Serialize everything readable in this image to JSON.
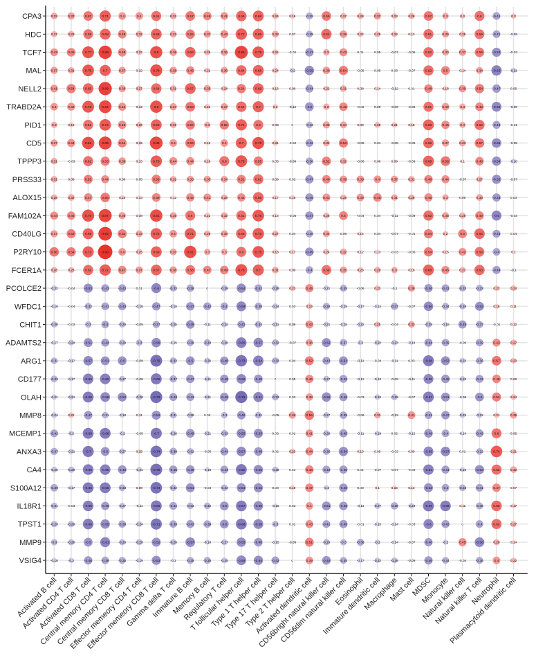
{
  "chart_data": {
    "type": "heatmap",
    "rows": [
      "CPA3",
      "HDC",
      "TCF7",
      "MAL",
      "NELL2",
      "TRABD2A",
      "PID1",
      "CD5",
      "TPPP3",
      "PRSS33",
      "ALOX15",
      "FAM102A",
      "CD40LG",
      "P2RY10",
      "FCER1A",
      "PCOLCE2",
      "WFDC1",
      "CHIT1",
      "ADAMTS2",
      "ARG1",
      "CD177",
      "OLAH",
      "MMP8",
      "MCEMP1",
      "ANXA3",
      "CA4",
      "S100A12",
      "IL18R1",
      "TPST1",
      "MMP9",
      "VSIG4"
    ],
    "columns": [
      "Activated B cell",
      "Activated CD4 T cell",
      "Activated CD8 T cell",
      "Central memory CD4 T cell",
      "Central memory CD8 T cell",
      "Effector memeory CD4 T cell",
      "Effector memeory CD8 T cell",
      "Gamma delta T cell",
      "Immature  B cell",
      "Memory B cell",
      "Regulatory T cell",
      "T follicular helper cell",
      "Type 1 T helper cell",
      "Type 17 T helper cell",
      "Type 2 T helper cell",
      "Activated dendritic cell",
      "CD56bright natural killer cell",
      "CD56dim natural killer cell",
      "Eosinophil",
      "Immature dendritic cell",
      "Macrophage",
      "Mast cell",
      "MDSC",
      "Monocyte",
      "Natural killer cell",
      "Natural killer T cell",
      "Neutrophil",
      "Plasmacytoid dendritic cell"
    ],
    "values": [
      [
        0.32,
        0.37,
        0.57,
        0.71,
        0.4,
        0.4,
        0.61,
        0.31,
        0.57,
        0.48,
        0.41,
        0.65,
        0.68,
        0.26,
        0.19,
        -0.35,
        0.56,
        0.27,
        0.28,
        0.37,
        0.23,
        0.28,
        0.57,
        0.3,
        0.2,
        0.6,
        -0.41,
        0.2
      ],
      [
        0.27,
        0.29,
        0.59,
        0.68,
        0.49,
        0.32,
        0.68,
        0.33,
        0.55,
        0.37,
        0.43,
        0.72,
        0.69,
        0.33,
        0.07,
        -0.35,
        0.64,
        0.39,
        0.22,
        0.25,
        0.24,
        0.12,
        0.61,
        0.35,
        0.25,
        0.59,
        -0.41,
        -0.09
      ],
      [
        0.42,
        0.49,
        0.77,
        0.89,
        0.48,
        0.22,
        0.8,
        0.38,
        0.66,
        0.25,
        0.36,
        0.86,
        0.75,
        0.24,
        -0.02,
        -0.47,
        0.3,
        0.43,
        0.01,
        0.05,
        -0.07,
        -0.05,
        0.62,
        0.33,
        0.37,
        0.56,
        -0.53,
        -0.03
      ],
      [
        0.37,
        0.31,
        0.75,
        0.7,
        0.37,
        0.12,
        0.78,
        0.38,
        0.46,
        0.21,
        0.36,
        0.64,
        0.68,
        0.24,
        -0.2,
        -0.55,
        0.39,
        0.54,
        -0.05,
        0.05,
        0.03,
        -0.07,
        0.62,
        0.5,
        0.14,
        0.34,
        -0.63,
        -0.21
      ],
      [
        0.41,
        0.54,
        0.65,
        0.89,
        0.36,
        0.27,
        0.64,
        0.31,
        0.67,
        0.35,
        0.24,
        0.54,
        0.66,
        0.16,
        0.08,
        -0.44,
        0.22,
        0.31,
        0.08,
        0.14,
        -0.12,
        0.01,
        0.48,
        0.18,
        0.39,
        0.54,
        -0.47,
        0.05
      ],
      [
        0.4,
        0.42,
        0.76,
        0.84,
        0.44,
        0.12,
        0.8,
        0.37,
        0.58,
        0.21,
        0.37,
        0.64,
        0.7,
        0.2,
        -0.12,
        -0.5,
        0.3,
        0.48,
        -0.02,
        0.06,
        -0.09,
        -0.06,
        0.61,
        0.39,
        0.3,
        0.48,
        -0.59,
        -0.09
      ],
      [
        0.3,
        0.18,
        0.61,
        0.74,
        0.46,
        0.26,
        0.69,
        0.31,
        0.55,
        0.3,
        0.55,
        0.71,
        0.6,
        0.08,
        0,
        -0.32,
        0.36,
        0.34,
        0.09,
        0.25,
        0.21,
        0.15,
        0.68,
        0.46,
        0.3,
        0.62,
        -0.43,
        -0.01
      ],
      [
        0.37,
        0.44,
        0.81,
        0.86,
        0.51,
        0.15,
        0.85,
        0.4,
        0.59,
        0.13,
        0.4,
        0.7,
        0.78,
        0.21,
        -0.02,
        -0.42,
        0.32,
        0.53,
        -0.06,
        0.04,
        -0.08,
        -0.05,
        0.65,
        0.37,
        0.33,
        0.57,
        -0.56,
        -0.05
      ],
      [
        0.31,
        -0.03,
        0.61,
        0.53,
        0.39,
        0.13,
        0.73,
        0.44,
        0.44,
        0.19,
        0.6,
        0.75,
        0.55,
        0.05,
        -0.09,
        -0.38,
        0.52,
        0.32,
        -0.06,
        0.06,
        0.09,
        -0.06,
        0.69,
        0.58,
        0.1,
        0.48,
        -0.54,
        -0.18
      ],
      [
        0.31,
        0.09,
        0.52,
        0.44,
        0.08,
        0.05,
        0.53,
        0.31,
        0.35,
        0.35,
        0.34,
        0.51,
        0.61,
        0.09,
        0.02,
        -0.47,
        0.48,
        0.39,
        0.39,
        0.4,
        0.37,
        0.31,
        0.48,
        0.44,
        -0.07,
        0.27,
        -0.53,
        -0.07
      ],
      [
        0.28,
        0.32,
        0.47,
        0.56,
        0.16,
        0.13,
        0.49,
        0.12,
        0.45,
        0.41,
        0.28,
        0.45,
        0.66,
        0.17,
        0.16,
        -0.46,
        0.41,
        0.26,
        0.39,
        0.48,
        0.31,
        0.28,
        0.45,
        0.3,
        0.06,
        0.33,
        -0.46,
        0.03
      ],
      [
        0.44,
        0.46,
        0.79,
        0.87,
        0.36,
        0.08,
        0.81,
        0.35,
        0.6,
        0.21,
        0.32,
        0.61,
        0.75,
        0.14,
        -0.05,
        -0.47,
        0.26,
        0.5,
        -0.04,
        0.04,
        -0.11,
        -0.08,
        0.62,
        0.35,
        0.28,
        0.49,
        -0.6,
        -0.03
      ],
      [
        0.37,
        0.53,
        0.69,
        0.92,
        0.52,
        0.33,
        0.72,
        0.4,
        0.71,
        0.29,
        0.35,
        0.65,
        0.73,
        0.27,
        0.04,
        -0.38,
        0.34,
        0.06,
        0.14,
        0.04,
        -0.07,
        -0.01,
        0.54,
        0.2,
        0.5,
        0.65,
        -0.43,
        0.04
      ],
      [
        0.56,
        0.54,
        0.71,
        0.99,
        0.4,
        0.25,
        0.69,
        0.33,
        0.81,
        0.3,
        0.3,
        0.6,
        0.75,
        0.18,
        0.17,
        -0.49,
        0.24,
        0.32,
        0.12,
        0.13,
        -0.03,
        -0.05,
        0.54,
        0.15,
        0.42,
        0.58,
        -0.4,
        0.1
      ],
      [
        0.28,
        0.26,
        0.62,
        0.72,
        0.47,
        0.37,
        0.67,
        0.38,
        0.58,
        0.47,
        0.49,
        0.76,
        0.7,
        0.31,
        0.09,
        -0.4,
        0.59,
        0.35,
        0.23,
        0.29,
        0.3,
        0.16,
        0.68,
        0.45,
        0.27,
        0.63,
        -0.44,
        -0.1
      ],
      [
        -0.22,
        -0.04,
        -0.53,
        -0.43,
        -0.42,
        0.01,
        -0.6,
        -0.33,
        -0.38,
        0,
        -0.29,
        -0.54,
        -0.41,
        -0.29,
        0.23,
        0.45,
        -0.21,
        -0.35,
        -0.06,
        0.23,
        -0.1,
        0.36,
        -0.46,
        -0.41,
        -0.33,
        -0.33,
        0.22,
        0.24
      ],
      [
        -0.18,
        -0.04,
        -0.33,
        -0.41,
        -0.43,
        -0.18,
        -0.47,
        -0.18,
        -0.47,
        -0.42,
        -0.4,
        -0.59,
        -0.38,
        -0.24,
        0.03,
        0.23,
        -0.35,
        -0.19,
        -0.17,
        -0.14,
        -0.37,
        -0.07,
        -0.56,
        -0.34,
        -0.29,
        -0.52,
        0.18,
        0.11
      ],
      [
        -0.28,
        -0.02,
        -0.3,
        -0.4,
        -0.28,
        -0.09,
        -0.37,
        -0.25,
        -0.49,
        -0.11,
        -0.24,
        -0.42,
        -0.34,
        -0.21,
        0.09,
        0.43,
        -0.21,
        -0.18,
        -0.22,
        0.25,
        -0.04,
        0.32,
        -0.29,
        -0.19,
        -0.45,
        -0.37,
        -0.01,
        0.12
      ],
      [
        -0.17,
        -0.24,
        -0.51,
        -0.44,
        -0.29,
        -0.3,
        -0.56,
        -0.15,
        -0.36,
        -0.34,
        -0.26,
        -0.65,
        -0.57,
        -0.32,
        -0.07,
        0.36,
        -0.52,
        -0.37,
        -0.2,
        -0.22,
        -0.23,
        -0.14,
        -0.44,
        -0.39,
        -0.05,
        -0.39,
        0.43,
        0.27
      ],
      [
        -0.31,
        -0.17,
        -0.57,
        -0.51,
        -0.5,
        -0.08,
        -0.76,
        -0.33,
        -0.5,
        -0.26,
        -0.48,
        -0.73,
        -0.64,
        -0.33,
        0.04,
        0.52,
        -0.42,
        -0.51,
        -0.11,
        -0.04,
        -0.11,
        0.03,
        -0.68,
        -0.52,
        -0.23,
        -0.36,
        0.57,
        0.23
      ],
      [
        -0.33,
        -0.17,
        -0.65,
        -0.65,
        -0.27,
        -0.08,
        -0.69,
        -0.37,
        -0.47,
        -0.21,
        -0.48,
        -0.58,
        -0.49,
        0,
        0.05,
        0.46,
        -0.27,
        -0.43,
        -0.11,
        -0.13,
        -0.08,
        -0.11,
        -0.59,
        -0.48,
        -0.23,
        -0.43,
        0.48,
        0.08
      ],
      [
        -0.21,
        -0.21,
        -0.68,
        -0.58,
        -0.52,
        -0.26,
        -0.78,
        -0.43,
        -0.43,
        -0.21,
        -0.49,
        -0.78,
        -0.61,
        -0.33,
        0.03,
        0.38,
        -0.55,
        -0.46,
        -0.03,
        -0.22,
        -0.29,
        -0.07,
        -0.67,
        -0.51,
        -0.08,
        -0.5,
        0.52,
        0.24
      ],
      [
        -0.24,
        0.22,
        -0.47,
        -0.31,
        -0.18,
        0.11,
        -0.52,
        -0.31,
        -0.26,
        0.02,
        -0.3,
        -0.48,
        -0.32,
        -0.05,
        0.36,
        0.56,
        -0.27,
        -0.39,
        -0.06,
        0.31,
        -0.12,
        0.41,
        -0.41,
        -0.47,
        -0.23,
        -0.22,
        0.21,
        0.35
      ],
      [
        -0.41,
        -0.2,
        -0.68,
        -0.68,
        -0.2,
        -0.05,
        -0.7,
        -0.26,
        -0.49,
        -0.21,
        -0.33,
        -0.55,
        -0.53,
        0.03,
        0.01,
        0.41,
        -0.29,
        -0.45,
        -0.11,
        -0.19,
        0.02,
        -0.12,
        -0.49,
        -0.4,
        -0.14,
        -0.43,
        0.6,
        0.05
      ],
      [
        -0.37,
        -0.21,
        -0.7,
        -0.5,
        -0.27,
        0.15,
        -0.74,
        -0.38,
        -0.32,
        -0.05,
        -0.44,
        -0.57,
        -0.48,
        0.02,
        0.23,
        0.44,
        -0.35,
        -0.54,
        0.13,
        0.05,
        -0.02,
        0.09,
        -0.59,
        -0.57,
        0.01,
        -0.32,
        0.74,
        0.21
      ],
      [
        -0.26,
        -0.29,
        -0.66,
        -0.65,
        -0.49,
        -0.21,
        -0.76,
        -0.45,
        -0.49,
        -0.18,
        -0.43,
        -0.69,
        -0.55,
        -0.28,
        0.01,
        0.48,
        -0.42,
        -0.45,
        0.01,
        -0.07,
        -0.07,
        -0.02,
        -0.64,
        -0.44,
        -0.19,
        -0.53,
        0.62,
        0.32
      ],
      [
        -0.39,
        -0.17,
        -0.68,
        -0.68,
        -0.33,
        0.08,
        -0.74,
        -0.32,
        -0.51,
        -0.04,
        -0.32,
        -0.53,
        -0.53,
        0.03,
        0.18,
        0.47,
        -0.2,
        -0.48,
        0.03,
        0.1,
        0.15,
        0.13,
        -0.52,
        -0.4,
        -0.33,
        -0.41,
        0.47,
        0.07
      ],
      [
        -0.31,
        -0.03,
        -0.66,
        -0.46,
        -0.27,
        -0.11,
        -0.69,
        -0.41,
        -0.32,
        -0.32,
        -0.5,
        -0.67,
        -0.56,
        -0.15,
        0.02,
        0.4,
        -0.51,
        -0.48,
        -0.11,
        -0.27,
        -0.38,
        -0.23,
        -0.69,
        -0.66,
        0.11,
        -0.35,
        0.65,
        0.17
      ],
      [
        -0.29,
        -0.29,
        -0.66,
        -0.55,
        -0.38,
        -0.24,
        -0.71,
        -0.39,
        -0.43,
        -0.39,
        -0.5,
        -0.68,
        -0.59,
        -0.3,
        0.01,
        0.43,
        -0.41,
        -0.45,
        -0.01,
        -0.15,
        -0.14,
        -0.03,
        -0.6,
        -0.43,
        0,
        -0.4,
        0.62,
        0.27
      ],
      [
        -0.3,
        -0.28,
        -0.5,
        -0.61,
        -0.28,
        -0.28,
        -0.52,
        -0.28,
        -0.57,
        -0.18,
        -0.27,
        -0.55,
        -0.48,
        -0.15,
        -0.09,
        0.51,
        -0.29,
        -0.3,
        -0.36,
        -0.2,
        -0.14,
        -0.07,
        -0.46,
        -0.2,
        0.45,
        -0.58,
        0.28,
        0.14
      ],
      [
        -0.18,
        -0.2,
        -0.46,
        -0.39,
        -0.35,
        -0.19,
        -0.53,
        -0.1,
        -0.35,
        -0.35,
        -0.25,
        -0.58,
        -0.54,
        -0.42,
        0,
        0.39,
        -0.49,
        -0.35,
        -0.17,
        -0.22,
        -0.26,
        -0.09,
        -0.46,
        -0.34,
        -0.04,
        -0.36,
        0.4,
        0.22
      ]
    ],
    "colors": {
      "negative": "#5a4fa8",
      "neutral": "#ffffff",
      "positive": "#e8302a"
    },
    "value_range": [
      -1,
      1
    ],
    "grid": true,
    "legend": "none"
  }
}
